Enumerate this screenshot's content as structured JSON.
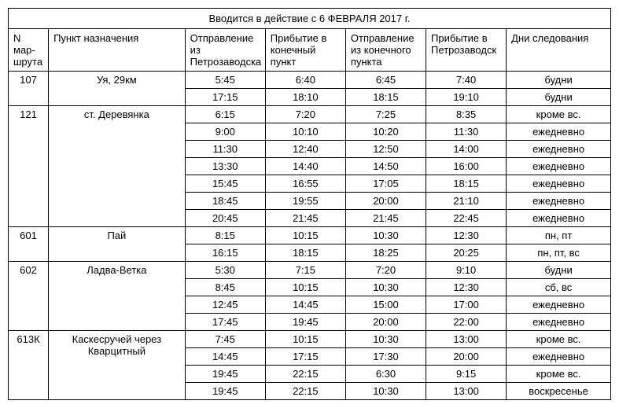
{
  "table": {
    "title": "Вводится в действие с 6 ФЕВРАЛЯ 2017 г.",
    "headers": {
      "route": "N мар-\nшрута",
      "dest": "Пункт назначения",
      "dep_from": "Отправление из Петрозаводска",
      "arr_end": "Прибытие в конечный пункт",
      "dep_end": "Отправление из конечного пункта",
      "arr_to": "Прибытие в Петрозаводск",
      "days": "Дни следования"
    },
    "groups": [
      {
        "route": "107",
        "dest": "Уя, 29км",
        "rows": [
          {
            "t1": "5:45",
            "t2": "6:40",
            "t3": "6:45",
            "t4": "7:40",
            "days": "будни"
          },
          {
            "t1": "17:15",
            "t2": "18:10",
            "t3": "18:15",
            "t4": "19:10",
            "days": "будни"
          }
        ]
      },
      {
        "route": "121",
        "dest": "ст. Деревянка",
        "rows": [
          {
            "t1": "6:15",
            "t2": "7:20",
            "t3": "7:25",
            "t4": "8:35",
            "days": "кроме вс."
          },
          {
            "t1": "9:00",
            "t2": "10:10",
            "t3": "10:20",
            "t4": "11:30",
            "days": "ежедневно"
          },
          {
            "t1": "11:30",
            "t2": "12:40",
            "t3": "12:50",
            "t4": "14:00",
            "days": "ежедневно"
          },
          {
            "t1": "13:30",
            "t2": "14:40",
            "t3": "14:50",
            "t4": "16:00",
            "days": "ежедневно"
          },
          {
            "t1": "15:45",
            "t2": "16:55",
            "t3": "17:05",
            "t4": "18:15",
            "days": "ежедневно"
          },
          {
            "t1": "18:45",
            "t2": "19:55",
            "t3": "20:00",
            "t4": "21:10",
            "days": "ежедневно"
          },
          {
            "t1": "20:45",
            "t2": "21:45",
            "t3": "21:45",
            "t4": "22:45",
            "days": "ежедневно"
          }
        ]
      },
      {
        "route": "601",
        "dest": "Пай",
        "rows": [
          {
            "t1": "8:15",
            "t2": "10:15",
            "t3": "10:30",
            "t4": "12:30",
            "days": "пн, пт"
          },
          {
            "t1": "16:15",
            "t2": "18:15",
            "t3": "18:25",
            "t4": "20:25",
            "days": "пн, пт, вс"
          }
        ]
      },
      {
        "route": "602",
        "dest": "Ладва-Ветка",
        "rows": [
          {
            "t1": "5:30",
            "t2": "7:15",
            "t3": "7:20",
            "t4": "9:10",
            "days": "будни"
          },
          {
            "t1": "8:45",
            "t2": "10:15",
            "t3": "10:30",
            "t4": "12:30",
            "days": "сб, вс"
          },
          {
            "t1": "12:45",
            "t2": "14:45",
            "t3": "15:00",
            "t4": "17:00",
            "days": "ежедневно"
          },
          {
            "t1": "17:45",
            "t2": "19:45",
            "t3": "20:00",
            "t4": "22:00",
            "days": "ежедневно"
          }
        ]
      },
      {
        "route": "613К",
        "dest": "Каскесручей через Кварцитный",
        "rows": [
          {
            "t1": "7:45",
            "t2": "10:15",
            "t3": "10:30",
            "t4": "13:00",
            "days": "кроме вс."
          },
          {
            "t1": "14:45",
            "t2": "17:15",
            "t3": "17:30",
            "t4": "20:00",
            "days": "ежедневно"
          },
          {
            "t1": "19:45",
            "t2": "22:15",
            "t3": "6:30",
            "t4": "9:15",
            "days": "кроме вс."
          },
          {
            "t1": "19:45",
            "t2": "22:15",
            "t3": "10:30",
            "t4": "13:00",
            "days": "воскресенье"
          }
        ]
      }
    ]
  }
}
